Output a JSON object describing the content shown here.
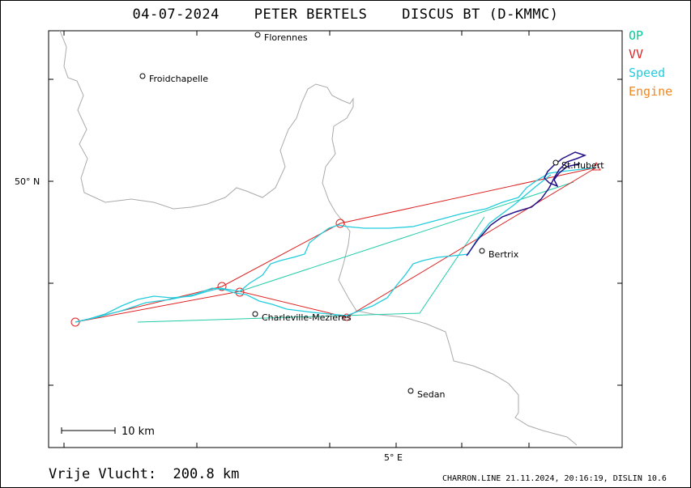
{
  "header": {
    "title": "04-07-2024    PETER BERTELS    DISCUS BT (D-KMMC)"
  },
  "legend": [
    {
      "label": "OP",
      "color": "#00cc99"
    },
    {
      "label": "VV",
      "color": "#dd2222"
    },
    {
      "label": "Speed",
      "color": "#22ccdd"
    },
    {
      "label": "Engine",
      "color": "#ee8822"
    }
  ],
  "map": {
    "lat_label": "50° N",
    "lon_label": "5° E",
    "scale_label": "10 km",
    "towns": [
      {
        "name": "Florennes"
      },
      {
        "name": "Froidchapelle"
      },
      {
        "name": "St.Hubert"
      },
      {
        "name": "Bertrix"
      },
      {
        "name": "Charleville-Mezieres"
      },
      {
        "name": "Sedan"
      }
    ]
  },
  "footer": {
    "distance": "Vrije Vlucht:  200.8 km",
    "credit": "CHARRON.LINE 21.11.2024, 20:16:19, DISLIN 10.6"
  }
}
